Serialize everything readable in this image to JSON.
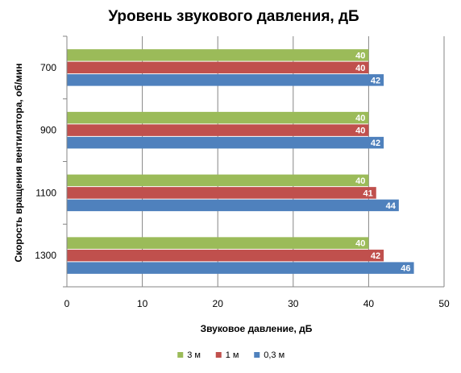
{
  "chart_data": {
    "type": "bar",
    "orientation": "horizontal",
    "title": "Уровень звукового давления, дБ",
    "xlabel": "Звуковое давление, дБ",
    "ylabel": "Скорость вращения вентилятора, об/мин",
    "categories": [
      "700",
      "900",
      "1100",
      "1300"
    ],
    "series": [
      {
        "name": "3 м",
        "color": "#9bbb59",
        "values": [
          40,
          40,
          40,
          40
        ]
      },
      {
        "name": "1 м",
        "color": "#c0504d",
        "values": [
          40,
          40,
          41,
          42
        ]
      },
      {
        "name": "0,3 м",
        "color": "#4f81bd",
        "values": [
          42,
          42,
          44,
          46
        ]
      }
    ],
    "xlim": [
      0,
      50
    ],
    "xticks": [
      0,
      10,
      20,
      30,
      40,
      50
    ],
    "grid": "vertical",
    "legend_position": "bottom",
    "legend_order": [
      "3 м",
      "1 м",
      "0,3 м"
    ],
    "data_labels": true
  }
}
